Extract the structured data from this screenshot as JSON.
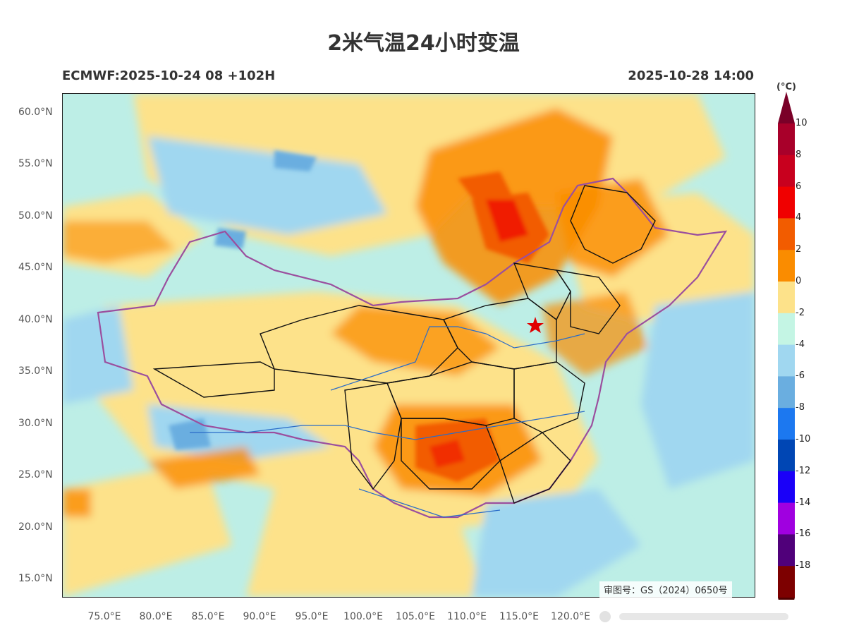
{
  "title": "2米气温24小时变温",
  "model_run": "ECMWF:2025-10-24 08 +102H",
  "valid_time": "2025-10-28 14:00",
  "review_number": "审图号：GS（2024）0650号",
  "latitude_labels": [
    "60.0°N",
    "55.0°N",
    "50.0°N",
    "45.0°N",
    "40.0°N",
    "35.0°N",
    "30.0°N",
    "25.0°N",
    "20.0°N",
    "15.0°N"
  ],
  "longitude_labels": [
    "75.0°E",
    "80.0°E",
    "85.0°E",
    "90.0°E",
    "95.0°E",
    "100.0°E",
    "105.0°E",
    "110.0°E",
    "115.0°E",
    "120.0°E"
  ],
  "colorbar": {
    "unit": "(°C)",
    "levels": [
      "10",
      "8",
      "6",
      "4",
      "2",
      "0",
      "-2",
      "-4",
      "-6",
      "-8",
      "-10",
      "-12",
      "-14",
      "-16",
      "-18"
    ],
    "colors": [
      "#a8002a",
      "#c8001e",
      "#f00000",
      "#f25c00",
      "#fa8c00",
      "#fde28a",
      "#c4f5e4",
      "#a0d7f0",
      "#6aaee0",
      "#1c78f0",
      "#0046b4",
      "#1a00f8",
      "#a000e0",
      "#50007a",
      "#7d0000"
    ],
    "top_arrow_color": "#7a0028",
    "bottom_arrow_color": "#500000"
  }
}
